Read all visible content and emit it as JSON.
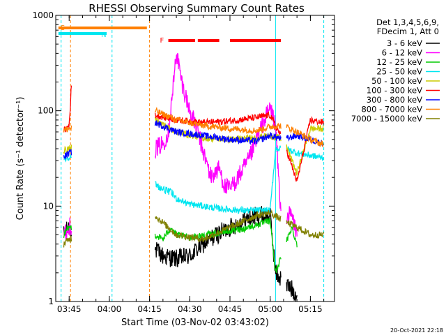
{
  "chart_data": {
    "type": "line",
    "title": "RHESSI Observing Summary Count Rates",
    "xlabel": "Start Time (03-Nov-02 03:43:02)",
    "ylabel": "Count Rate (s⁻¹ detector⁻¹)",
    "y_scale": "log",
    "ylim": [
      1,
      1000
    ],
    "xlim_minutes": [
      "03:40",
      "05:24"
    ],
    "x_ticks": [
      "03:45",
      "04:00",
      "04:15",
      "04:30",
      "04:45",
      "05:00",
      "05:15"
    ],
    "y_ticks": [
      "1",
      "10",
      "100",
      "1000"
    ],
    "legend_header": [
      "Det 1,3,4,5,6,9,",
      "FDecim 1, Att 0"
    ],
    "legend_position": "right",
    "footer_date": "20-Oct-2021 22:18",
    "flags": [
      {
        "label": "S",
        "color": "#ff8000",
        "start": "03:41",
        "end": "04:14"
      },
      {
        "label": "N",
        "color": "#00e6f0",
        "start": "03:41",
        "end": "03:59"
      },
      {
        "label": "F",
        "color": "#ff0000",
        "segments": [
          [
            "04:22",
            "04:32"
          ],
          [
            "04:33",
            "04:41"
          ],
          [
            "04:45",
            "05:04"
          ]
        ]
      }
    ],
    "vlines": [
      {
        "color": "#00e6f0",
        "style": "dashed",
        "time": "03:42"
      },
      {
        "color": "#ff8000",
        "style": "dashed",
        "time": "03:45.5"
      },
      {
        "color": "#00e6f0",
        "style": "dashed",
        "time": "04:01"
      },
      {
        "color": "#ff8000",
        "style": "dashed",
        "time": "04:15"
      },
      {
        "color": "#00e6f0",
        "style": "solid",
        "time": "05:02"
      },
      {
        "color": "#00e6f0",
        "style": "dashed",
        "time": "05:20"
      }
    ],
    "gaps": [
      [
        "03:46",
        "04:17"
      ],
      [
        "05:04",
        "05:06"
      ]
    ],
    "series": [
      {
        "name": "3 - 6 keV",
        "color": "#000000",
        "points": [
          [
            "03:43",
            5
          ],
          [
            "03:45",
            6
          ],
          [
            "04:17",
            3.5
          ],
          [
            "04:20",
            3
          ],
          [
            "04:25",
            2.8
          ],
          [
            "04:30",
            3
          ],
          [
            "04:35",
            4
          ],
          [
            "04:40",
            5
          ],
          [
            "04:45",
            6
          ],
          [
            "04:50",
            7
          ],
          [
            "04:55",
            8
          ],
          [
            "05:00",
            8
          ],
          [
            "05:02",
            2
          ],
          [
            "05:06",
            1.5
          ],
          [
            "05:10",
            1.2
          ]
        ]
      },
      {
        "name": "6 - 12 keV",
        "color": "#ff00ff",
        "points": [
          [
            "03:43",
            5
          ],
          [
            "03:45",
            6
          ],
          [
            "04:17",
            40
          ],
          [
            "04:20",
            45
          ],
          [
            "04:22",
            60
          ],
          [
            "04:24",
            200
          ],
          [
            "04:25",
            420
          ],
          [
            "04:27",
            200
          ],
          [
            "04:30",
            100
          ],
          [
            "04:33",
            60
          ],
          [
            "04:36",
            30
          ],
          [
            "04:38",
            20
          ],
          [
            "04:41",
            25
          ],
          [
            "04:43",
            16
          ],
          [
            "04:45",
            15
          ],
          [
            "04:48",
            20
          ],
          [
            "04:52",
            30
          ],
          [
            "04:56",
            60
          ],
          [
            "05:00",
            110
          ],
          [
            "05:02",
            70
          ],
          [
            "05:04",
            8
          ],
          [
            "05:08",
            8
          ],
          [
            "05:10",
            5
          ]
        ]
      },
      {
        "name": "12 - 25 keV",
        "color": "#00cc00",
        "points": [
          [
            "03:43",
            5
          ],
          [
            "03:45",
            6
          ],
          [
            "04:17",
            5
          ],
          [
            "04:20",
            4.5
          ],
          [
            "04:23",
            6
          ],
          [
            "04:25",
            5
          ],
          [
            "04:30",
            4.7
          ],
          [
            "04:40",
            5.2
          ],
          [
            "04:50",
            5.8
          ],
          [
            "05:00",
            7
          ],
          [
            "05:02",
            2
          ],
          [
            "05:08",
            6
          ],
          [
            "05:10",
            4
          ]
        ]
      },
      {
        "name": "25 - 50 keV",
        "color": "#00e6f0",
        "points": [
          [
            "03:43",
            31
          ],
          [
            "03:45",
            33
          ],
          [
            "04:17",
            17
          ],
          [
            "04:20",
            15
          ],
          [
            "04:23",
            14
          ],
          [
            "04:25",
            12
          ],
          [
            "04:30",
            10.5
          ],
          [
            "04:35",
            10
          ],
          [
            "04:40",
            9.5
          ],
          [
            "04:45",
            9.2
          ],
          [
            "04:50",
            9
          ],
          [
            "04:55",
            9
          ],
          [
            "05:00",
            9
          ],
          [
            "05:02",
            40
          ],
          [
            "05:06",
            40
          ],
          [
            "05:10",
            36
          ],
          [
            "05:20",
            32
          ]
        ]
      },
      {
        "name": "50 - 100 keV",
        "color": "#cccc00",
        "points": [
          [
            "03:43",
            38
          ],
          [
            "03:45",
            40
          ],
          [
            "04:17",
            80
          ],
          [
            "04:25",
            60
          ],
          [
            "04:35",
            52
          ],
          [
            "04:45",
            50
          ],
          [
            "04:55",
            52
          ],
          [
            "05:00",
            55
          ],
          [
            "05:05",
            50
          ],
          [
            "05:10",
            22
          ],
          [
            "05:15",
            65
          ],
          [
            "05:20",
            65
          ]
        ]
      },
      {
        "name": "100 - 300 keV",
        "color": "#ff0000",
        "points": [
          [
            "03:43",
            62
          ],
          [
            "03:45",
            70
          ],
          [
            "03:46",
            220
          ],
          [
            "04:17",
            90
          ],
          [
            "04:25",
            80
          ],
          [
            "04:35",
            75
          ],
          [
            "04:45",
            78
          ],
          [
            "04:55",
            85
          ],
          [
            "05:00",
            90
          ],
          [
            "05:05",
            48
          ],
          [
            "05:10",
            18
          ],
          [
            "05:15",
            80
          ],
          [
            "05:20",
            75
          ]
        ]
      },
      {
        "name": "300 - 800 keV",
        "color": "#0000ff",
        "points": [
          [
            "03:43",
            33
          ],
          [
            "03:45",
            36
          ],
          [
            "04:17",
            75
          ],
          [
            "04:25",
            60
          ],
          [
            "04:35",
            55
          ],
          [
            "04:45",
            50
          ],
          [
            "04:55",
            48
          ],
          [
            "05:00",
            55
          ],
          [
            "05:05",
            50
          ],
          [
            "05:10",
            55
          ],
          [
            "05:15",
            50
          ],
          [
            "05:20",
            45
          ]
        ]
      },
      {
        "name": "800 - 7000 keV",
        "color": "#ff8000",
        "points": [
          [
            "03:43",
            62
          ],
          [
            "03:45",
            65
          ],
          [
            "04:17",
            100
          ],
          [
            "04:25",
            80
          ],
          [
            "04:35",
            70
          ],
          [
            "04:45",
            65
          ],
          [
            "04:55",
            62
          ],
          [
            "05:00",
            68
          ],
          [
            "05:05",
            70
          ],
          [
            "05:10",
            60
          ],
          [
            "05:15",
            50
          ],
          [
            "05:20",
            44
          ]
        ]
      },
      {
        "name": "7000 - 15000 keV",
        "color": "#808000",
        "points": [
          [
            "03:43",
            4
          ],
          [
            "03:45",
            4.5
          ],
          [
            "04:17",
            8
          ],
          [
            "04:25",
            5
          ],
          [
            "04:35",
            4.5
          ],
          [
            "04:45",
            6
          ],
          [
            "04:55",
            8
          ],
          [
            "05:00",
            8.5
          ],
          [
            "05:05",
            7
          ],
          [
            "05:10",
            6
          ],
          [
            "05:15",
            5
          ],
          [
            "05:20",
            5
          ]
        ]
      }
    ]
  }
}
